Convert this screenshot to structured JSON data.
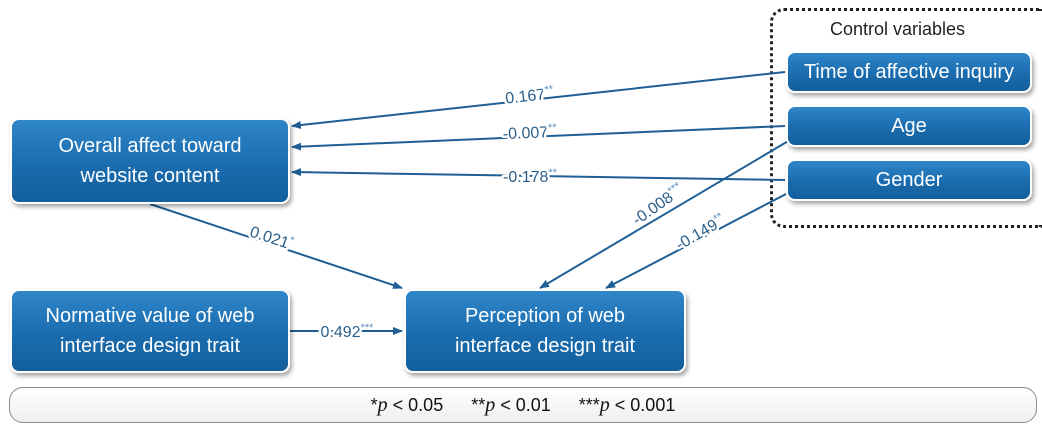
{
  "control_group": {
    "title": "Control variables"
  },
  "nodes": {
    "overall_affect": "Overall affect toward website content",
    "normative_value": "Normative value of web interface design trait",
    "perception": "Perception of web interface design trait",
    "time_inquiry": "Time of affective inquiry",
    "age": "Age",
    "gender": "Gender"
  },
  "edges": [
    {
      "from": "Time of affective inquiry",
      "to": "Overall affect toward website content",
      "coef": "0.167",
      "stars": "**"
    },
    {
      "from": "Age",
      "to": "Overall affect toward website content",
      "coef": "-0.007",
      "stars": "**"
    },
    {
      "from": "Gender",
      "to": "Overall affect toward website content",
      "coef": "-0.178",
      "stars": "**"
    },
    {
      "from": "Overall affect toward website content",
      "to": "Perception of web interface design trait",
      "coef": "0.021",
      "stars": "*"
    },
    {
      "from": "Normative value of web interface design trait",
      "to": "Perception of web interface design trait",
      "coef": "0.492",
      "stars": "***"
    },
    {
      "from": "Age",
      "to": "Perception of web interface design trait",
      "coef": "-0.008",
      "stars": "***"
    },
    {
      "from": "Gender",
      "to": "Perception of web interface design trait",
      "coef": "-0.149",
      "stars": "**"
    }
  ],
  "legend": {
    "items": [
      {
        "stars": "*",
        "p": "p",
        "rest": " < 0.05"
      },
      {
        "stars": "**",
        "p": "p",
        "rest": " < 0.01"
      },
      {
        "stars": "***",
        "p": "p",
        "rest": " < 0.001"
      }
    ]
  },
  "colors": {
    "box_fill": "#1a6cae",
    "arrow": "#1f5f95",
    "edge_label": "#2a5e8a"
  }
}
